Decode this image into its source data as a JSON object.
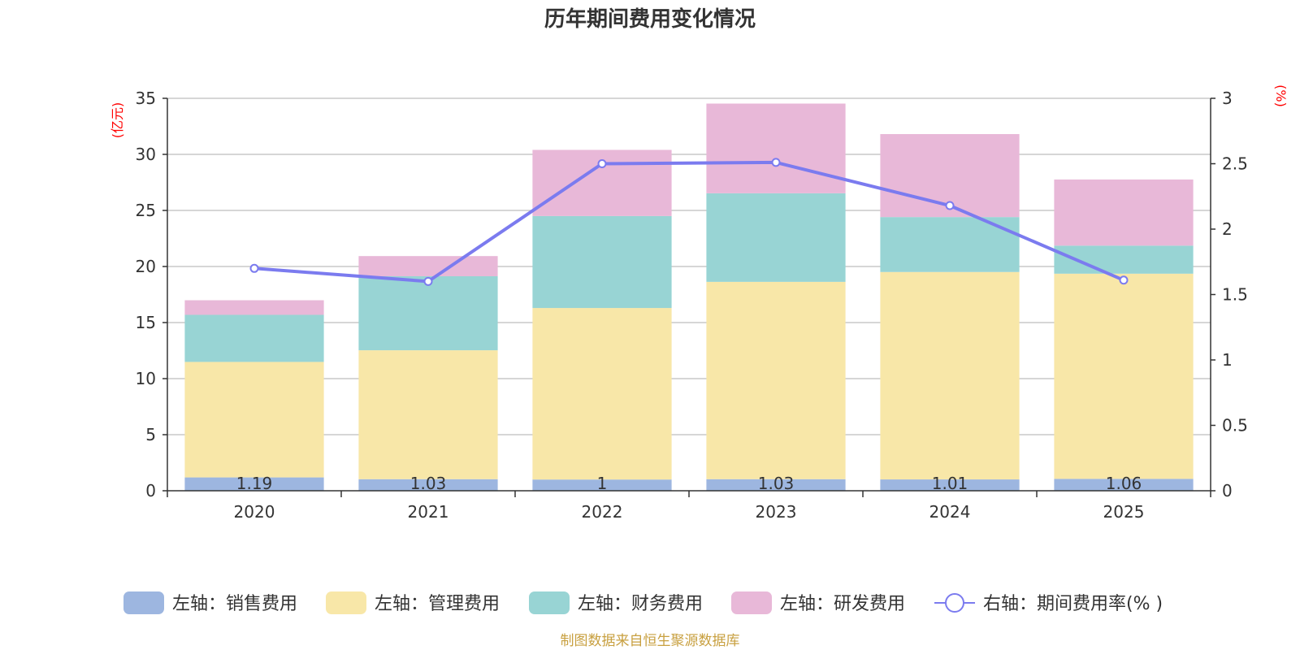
{
  "chart_data": {
    "type": "bar",
    "title": "历年期间费用变化情况",
    "categories": [
      "2020",
      "2021",
      "2022",
      "2023",
      "2024",
      "2025"
    ],
    "left_axis": {
      "unit_label": "(亿元)",
      "ylim": [
        0,
        35
      ],
      "ticks": [
        "0",
        "5",
        "10",
        "15",
        "20",
        "25",
        "30",
        "35"
      ]
    },
    "right_axis": {
      "unit_label": "(%)",
      "ylim": [
        0,
        3
      ],
      "ticks": [
        "0",
        "0.5",
        "1",
        "1.5",
        "2",
        "2.5",
        "3"
      ]
    },
    "series": [
      {
        "name": "左轴：销售费用",
        "axis": "left",
        "kind": "bar",
        "color": "#9db6e0",
        "values": [
          1.19,
          1.03,
          1,
          1.03,
          1.01,
          1.06
        ],
        "labels": [
          "1.19",
          "1.03",
          "1",
          "1.03",
          "1.01",
          "1.06"
        ]
      },
      {
        "name": "左轴：管理费用",
        "axis": "left",
        "kind": "bar",
        "color": "#f8e7a8",
        "values": [
          10.3,
          11.5,
          15.3,
          17.6,
          18.5,
          18.3
        ]
      },
      {
        "name": "左轴：财务费用",
        "axis": "left",
        "kind": "bar",
        "color": "#98d4d4",
        "values": [
          4.2,
          6.6,
          8.2,
          7.9,
          4.9,
          2.5
        ]
      },
      {
        "name": "左轴：研发费用",
        "axis": "left",
        "kind": "bar",
        "color": "#e8b8d8",
        "values": [
          1.3,
          1.8,
          5.9,
          8.0,
          7.4,
          5.9
        ]
      },
      {
        "name": "右轴：期间费用率(% )",
        "axis": "right",
        "kind": "line",
        "color": "#7b7bef",
        "values": [
          1.7,
          1.6,
          2.5,
          2.51,
          2.18,
          1.61
        ]
      }
    ],
    "legend_position": "bottom",
    "grid": true
  },
  "source_note": "制图数据来自恒生聚源数据库"
}
